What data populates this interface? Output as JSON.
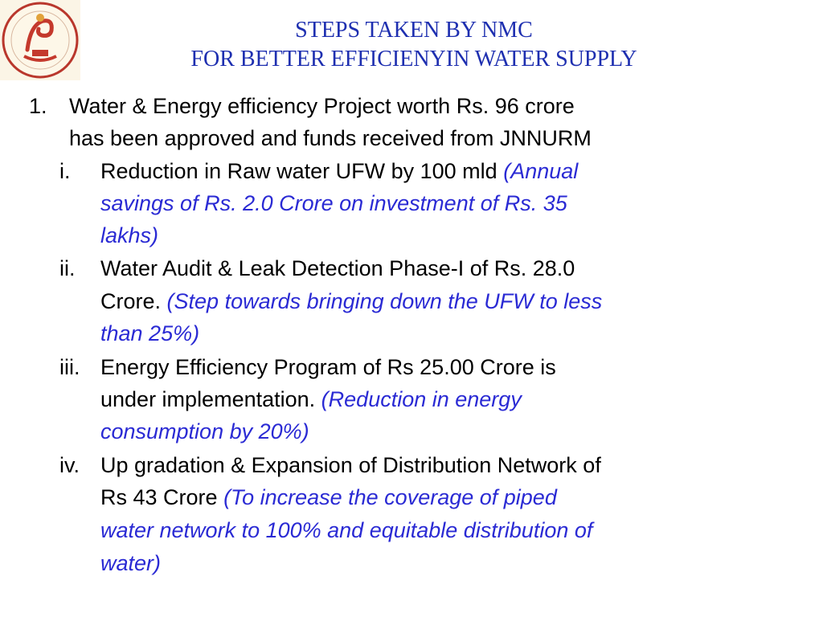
{
  "title": {
    "line1": "STEPS TAKEN BY NMC",
    "line2": "FOR BETTER EFFICIENYIN WATER SUPPLY"
  },
  "item1": {
    "number": "1.",
    "lines": [
      "Water & Energy efficiency Project worth Rs. 96 crore",
      "has been approved and funds received from JNNURM"
    ]
  },
  "sub": [
    {
      "number": "i.",
      "line1_main": "Reduction in Raw water UFW by 100 mld",
      "line1_note": "(Annual",
      "line2_note": "savings of Rs. 2.0 Crore on investment of  Rs. 35",
      "line3_note": "lakhs)"
    },
    {
      "number": "ii.",
      "line1_main": "Water Audit & Leak Detection Phase-I of Rs. 28.0",
      "line2_main": "Crore.",
      "line2_note": "(Step towards bringing down the UFW to less",
      "line3_note": "than 25%)"
    },
    {
      "number": "iii.",
      "line1_main": "Energy Efficiency Program of Rs 25.00 Crore is",
      "line2_main": "under implementation.",
      "line2_note": "(Reduction in energy",
      "line3_note": "consumption by 20%)"
    },
    {
      "number": "iv.",
      "line1_main": "Up gradation & Expansion of Distribution Network of",
      "line2_main": "Rs 43 Crore",
      "line2_note": "(To increase the coverage of piped",
      "line3_note": "water network to 100% and equitable distribution of",
      "line4_note": "water)"
    }
  ]
}
